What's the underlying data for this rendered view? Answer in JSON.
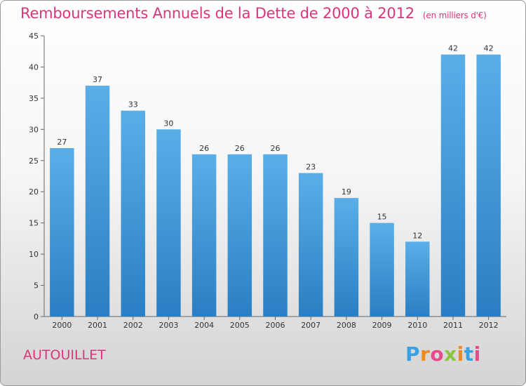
{
  "chart_data": {
    "type": "bar",
    "title": "Remboursements Annuels de la Dette de 2000 à 2012",
    "subtitle": "(en milliers d'€)",
    "categories": [
      "2000",
      "2001",
      "2002",
      "2003",
      "2004",
      "2005",
      "2006",
      "2007",
      "2008",
      "2009",
      "2010",
      "2011",
      "2012"
    ],
    "values": [
      27,
      37,
      33,
      30,
      26,
      26,
      26,
      23,
      19,
      15,
      12,
      42,
      42
    ],
    "ylim": [
      0,
      45
    ],
    "yticks": [
      0,
      5,
      10,
      15,
      20,
      25,
      30,
      35,
      40,
      45
    ],
    "grid": false,
    "bar_color_top": "#5aaee8",
    "bar_color_bottom": "#2a7fc4"
  },
  "footer": {
    "place_name": "AUTOUILLET",
    "logo_text": "Proxiti",
    "logo_colors": [
      "#3aa0e0",
      "#f08a1e",
      "#e64a8a",
      "#8bc53f",
      "#f08a1e",
      "#3aa0e0",
      "#e64a8a"
    ]
  }
}
